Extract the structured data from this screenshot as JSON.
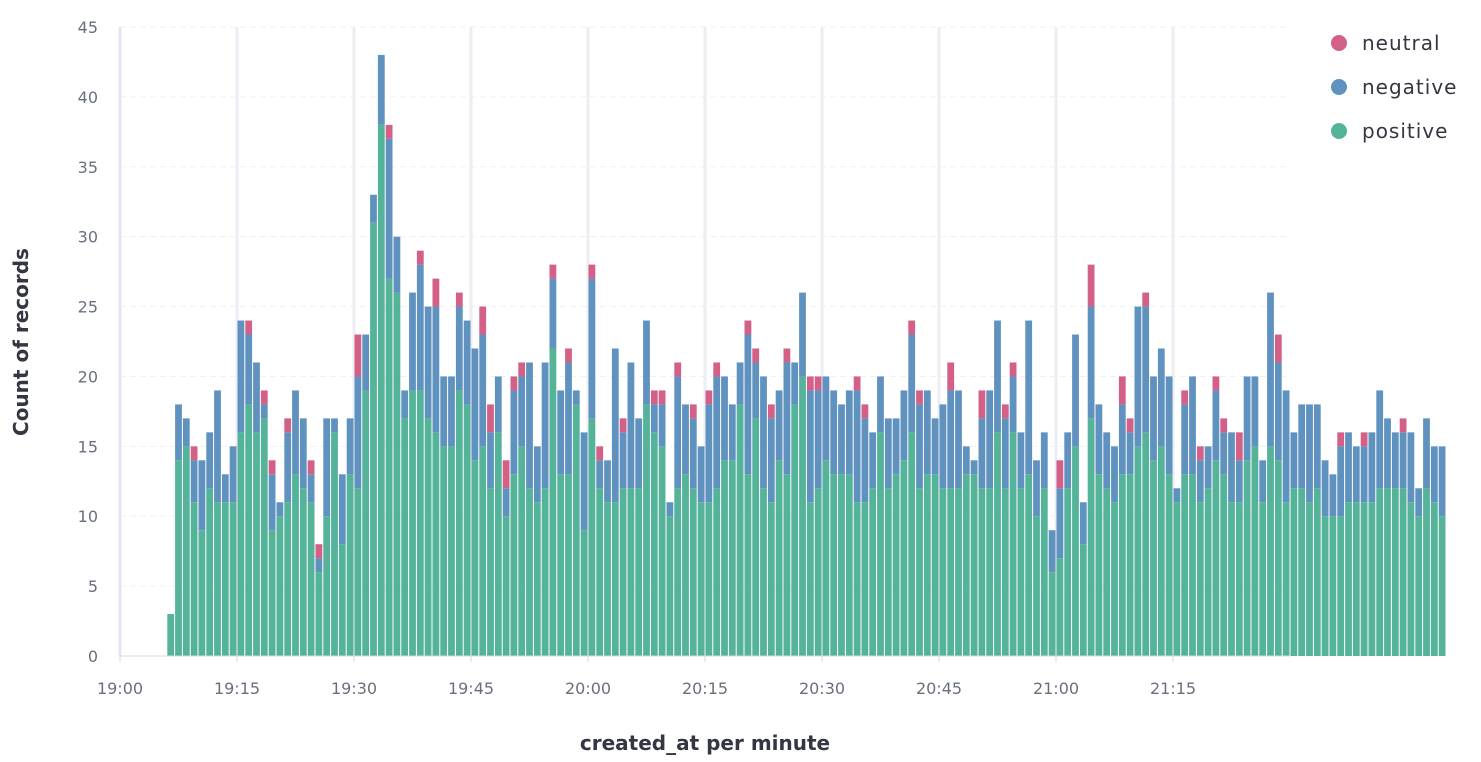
{
  "chart_data": {
    "type": "bar",
    "stacked": true,
    "xlabel": "created_at per minute",
    "ylabel": "Count of records",
    "ylim": [
      0,
      45
    ],
    "y_ticks": [
      0,
      5,
      10,
      15,
      20,
      25,
      30,
      35,
      40,
      45
    ],
    "x_axis": {
      "start_time": "19:00",
      "end_time": "21:29",
      "tick_labels": [
        "19:00",
        "19:15",
        "19:30",
        "19:45",
        "20:00",
        "20:15",
        "20:30",
        "20:45",
        "21:00",
        "21:15"
      ],
      "first_bar_time": "19:06"
    },
    "grid": true,
    "legend": {
      "placement": "top-right"
    },
    "series": [
      {
        "name": "neutral",
        "color": "#d36086",
        "values": [
          0,
          0,
          0,
          1,
          0,
          0,
          0,
          0,
          0,
          0,
          1,
          0,
          1,
          1,
          0,
          1,
          0,
          0,
          1,
          1,
          0,
          0,
          0,
          0,
          3,
          0,
          0,
          0,
          1,
          0,
          0,
          0,
          1,
          0,
          2,
          0,
          0,
          1,
          0,
          0,
          2,
          2,
          0,
          2,
          1,
          1,
          0,
          0,
          0,
          1,
          0,
          1,
          0,
          0,
          1,
          1,
          0,
          0,
          1,
          0,
          0,
          0,
          1,
          1,
          0,
          1,
          0,
          1,
          0,
          1,
          1,
          0,
          0,
          0,
          1,
          1,
          0,
          1,
          0,
          1,
          0,
          0,
          1,
          1,
          0,
          0,
          0,
          0,
          1,
          1,
          0,
          0,
          0,
          0,
          0,
          1,
          1,
          0,
          0,
          0,
          2,
          0,
          0,
          0,
          2,
          0,
          0,
          1,
          1,
          0,
          0,
          0,
          0,
          0,
          2,
          0,
          0,
          0,
          3,
          0,
          0,
          0,
          2,
          1,
          0,
          1,
          0,
          0,
          0,
          0,
          1,
          0,
          1,
          0,
          1,
          1,
          0,
          2,
          0,
          0,
          0,
          0,
          2,
          0,
          0,
          0,
          0,
          0,
          0,
          0,
          1,
          0,
          0,
          1,
          0,
          0,
          0,
          0,
          1,
          0,
          0,
          0,
          0,
          0
        ]
      },
      {
        "name": "negative",
        "color": "#6092c0",
        "values": [
          0,
          4,
          2,
          3,
          5,
          4,
          8,
          2,
          4,
          8,
          5,
          5,
          1,
          4,
          1,
          5,
          6,
          5,
          2,
          1,
          7,
          1,
          5,
          4,
          8,
          4,
          2,
          5,
          10,
          4,
          2,
          7,
          9,
          8,
          9,
          5,
          5,
          6,
          6,
          8,
          8,
          4,
          4,
          2,
          6,
          5,
          9,
          4,
          9,
          5,
          6,
          8,
          1,
          7,
          10,
          2,
          3,
          11,
          4,
          9,
          5,
          6,
          2,
          3,
          1,
          8,
          5,
          5,
          4,
          7,
          8,
          6,
          4,
          3,
          10,
          4,
          8,
          6,
          5,
          8,
          3,
          6,
          8,
          7,
          6,
          6,
          5,
          6,
          8,
          6,
          4,
          4,
          5,
          4,
          5,
          7,
          6,
          6,
          4,
          6,
          7,
          7,
          2,
          1,
          5,
          7,
          8,
          5,
          4,
          4,
          11,
          4,
          4,
          3,
          5,
          4,
          8,
          3,
          8,
          5,
          4,
          4,
          5,
          3,
          10,
          9,
          6,
          7,
          7,
          1,
          5,
          7,
          3,
          3,
          5,
          3,
          5,
          3,
          6,
          5,
          3,
          11,
          7,
          8,
          4,
          6,
          7,
          6,
          4,
          3,
          5,
          5,
          4,
          4,
          5,
          7,
          5,
          4,
          4,
          5,
          2,
          5,
          4,
          5,
          5,
          2
        ]
      },
      {
        "name": "positive",
        "color": "#54b399",
        "values": [
          3,
          14,
          15,
          11,
          9,
          12,
          11,
          11,
          11,
          16,
          18,
          16,
          17,
          9,
          10,
          11,
          13,
          12,
          11,
          6,
          10,
          16,
          8,
          13,
          12,
          19,
          31,
          38,
          27,
          26,
          17,
          19,
          19,
          17,
          16,
          15,
          15,
          19,
          18,
          14,
          15,
          12,
          16,
          10,
          13,
          15,
          12,
          11,
          12,
          22,
          13,
          13,
          18,
          9,
          17,
          12,
          11,
          11,
          12,
          12,
          12,
          18,
          16,
          15,
          10,
          12,
          13,
          12,
          11,
          11,
          12,
          14,
          14,
          18,
          13,
          17,
          12,
          11,
          14,
          13,
          18,
          20,
          11,
          12,
          14,
          13,
          13,
          13,
          11,
          11,
          12,
          16,
          12,
          13,
          14,
          16,
          12,
          13,
          13,
          12,
          12,
          12,
          13,
          13,
          12,
          12,
          16,
          12,
          16,
          12,
          13,
          10,
          12,
          6,
          7,
          12,
          15,
          8,
          17,
          13,
          12,
          11,
          13,
          13,
          15,
          16,
          14,
          15,
          13,
          11,
          13,
          13,
          11,
          12,
          14,
          13,
          11,
          11,
          14,
          15,
          11,
          15,
          14,
          11,
          12,
          12,
          11,
          12,
          10,
          10,
          10,
          11,
          11,
          11,
          11,
          12,
          12,
          12,
          12,
          11,
          10,
          12,
          11,
          10,
          12,
          15
        ]
      }
    ]
  }
}
